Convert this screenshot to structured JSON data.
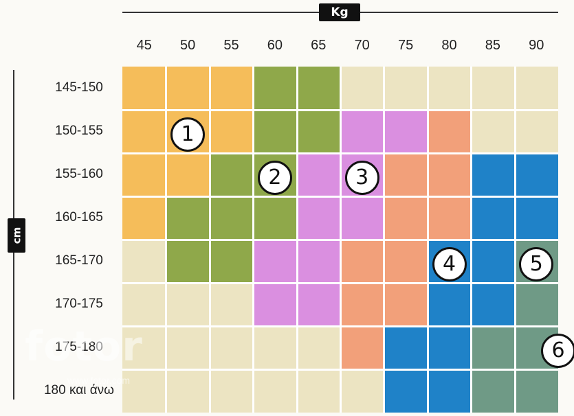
{
  "chart_data": {
    "type": "heatmap",
    "x_axis_title": "Kg",
    "y_axis_title": "cm",
    "x_categories": [
      "45",
      "50",
      "55",
      "60",
      "65",
      "70",
      "75",
      "80",
      "85",
      "90"
    ],
    "y_categories": [
      "145-150",
      "150-155",
      "155-160",
      "160-165",
      "165-170",
      "170-175",
      "175-180",
      "180 και άνω"
    ],
    "size_colors": {
      "0": "#ece4c2",
      "1": "#f5bd5a",
      "2": "#8fa84a",
      "3": "#da8fe0",
      "4": "#f2a07a",
      "5": "#1f82c8",
      "6": "#6f9a86"
    },
    "values": [
      [
        1,
        1,
        1,
        2,
        2,
        0,
        0,
        0,
        0,
        0
      ],
      [
        1,
        1,
        1,
        2,
        2,
        3,
        3,
        4,
        0,
        0
      ],
      [
        1,
        1,
        2,
        2,
        3,
        3,
        4,
        4,
        5,
        5
      ],
      [
        1,
        2,
        2,
        2,
        3,
        3,
        4,
        4,
        5,
        5
      ],
      [
        0,
        2,
        2,
        3,
        3,
        4,
        4,
        5,
        5,
        6
      ],
      [
        0,
        0,
        0,
        3,
        3,
        4,
        4,
        5,
        5,
        6
      ],
      [
        0,
        0,
        0,
        0,
        0,
        4,
        5,
        5,
        6,
        6
      ],
      [
        0,
        0,
        0,
        0,
        0,
        0,
        5,
        5,
        6,
        6
      ]
    ],
    "labels": [
      {
        "text": "1",
        "row": 1.5,
        "col": 0.5
      },
      {
        "text": "2",
        "row": 2.5,
        "col": 2.5
      },
      {
        "text": "3",
        "row": 2.5,
        "col": 4.5
      },
      {
        "text": "4",
        "row": 4.5,
        "col": 6.5
      },
      {
        "text": "5",
        "row": 4.5,
        "col": 8.5
      },
      {
        "text": "6",
        "row": 6.5,
        "col": 9.0
      }
    ]
  },
  "watermark": {
    "brand": "fotor",
    "sub": "www.fotor.com"
  }
}
